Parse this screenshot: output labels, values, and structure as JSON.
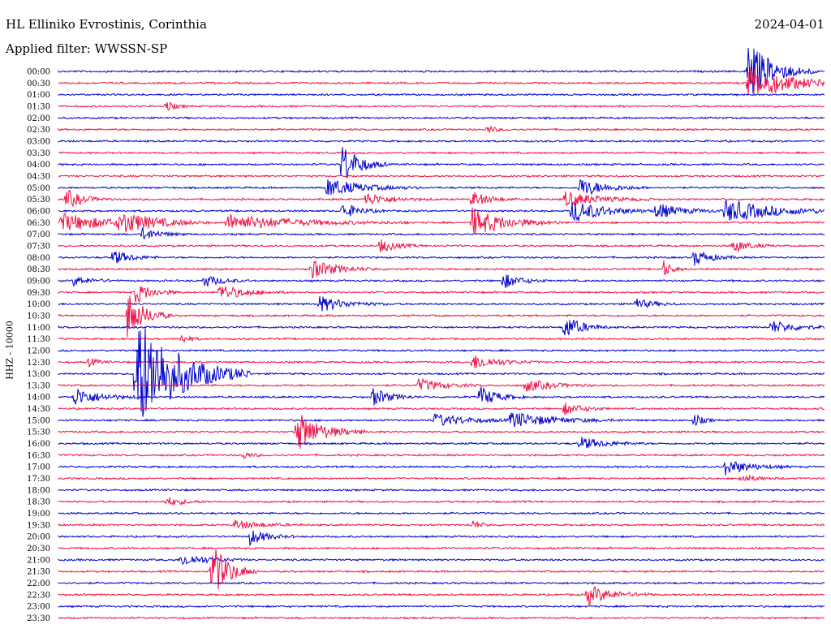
{
  "header": {
    "station": "HL Elliniko Evrostinis, Corinthia",
    "date": "2024-04-01",
    "filter": "Applied filter: WWSSN-SP"
  },
  "chart_data": {
    "type": "line",
    "ylabel": "HHZ - 10000",
    "colors": [
      "#0000cc",
      "#ee1144"
    ],
    "rows": [
      "00:00",
      "00:30",
      "01:00",
      "01:30",
      "02:00",
      "02:30",
      "03:00",
      "03:30",
      "04:00",
      "04:30",
      "05:00",
      "05:30",
      "06:00",
      "06:30",
      "07:00",
      "07:30",
      "08:00",
      "08:30",
      "09:00",
      "09:30",
      "10:00",
      "10:30",
      "11:00",
      "11:30",
      "12:00",
      "12:30",
      "13:00",
      "13:30",
      "14:00",
      "14:30",
      "15:00",
      "15:30",
      "16:00",
      "16:30",
      "17:00",
      "17:30",
      "18:00",
      "18:30",
      "19:00",
      "19:30",
      "20:00",
      "20:30",
      "21:00",
      "21:30",
      "22:00",
      "22:30",
      "23:00",
      "23:30"
    ],
    "events": [
      {
        "row": 0,
        "x": 0.9,
        "amp": 38,
        "dur": 0.03
      },
      {
        "row": 1,
        "x": 0.9,
        "amp": 22,
        "dur": 0.05
      },
      {
        "row": 3,
        "x": 0.14,
        "amp": 7,
        "dur": 0.01
      },
      {
        "row": 5,
        "x": 0.56,
        "amp": 5,
        "dur": 0.01
      },
      {
        "row": 8,
        "x": 0.37,
        "amp": 28,
        "dur": 0.02
      },
      {
        "row": 10,
        "x": 0.35,
        "amp": 12,
        "dur": 0.04
      },
      {
        "row": 10,
        "x": 0.68,
        "amp": 12,
        "dur": 0.03
      },
      {
        "row": 11,
        "x": 0.01,
        "amp": 12,
        "dur": 0.02
      },
      {
        "row": 11,
        "x": 0.4,
        "amp": 8,
        "dur": 0.03
      },
      {
        "row": 11,
        "x": 0.54,
        "amp": 10,
        "dur": 0.02
      },
      {
        "row": 11,
        "x": 0.66,
        "amp": 10,
        "dur": 0.04
      },
      {
        "row": 12,
        "x": 0.37,
        "amp": 10,
        "dur": 0.02
      },
      {
        "row": 12,
        "x": 0.67,
        "amp": 14,
        "dur": 0.04
      },
      {
        "row": 12,
        "x": 0.78,
        "amp": 10,
        "dur": 0.03
      },
      {
        "row": 12,
        "x": 0.87,
        "amp": 14,
        "dur": 0.06
      },
      {
        "row": 13,
        "x": 0.0,
        "amp": 12,
        "dur": 0.06
      },
      {
        "row": 13,
        "x": 0.08,
        "amp": 12,
        "dur": 0.04
      },
      {
        "row": 13,
        "x": 0.22,
        "amp": 10,
        "dur": 0.08
      },
      {
        "row": 13,
        "x": 0.54,
        "amp": 18,
        "dur": 0.04
      },
      {
        "row": 14,
        "x": 0.11,
        "amp": 8,
        "dur": 0.02
      },
      {
        "row": 15,
        "x": 0.42,
        "amp": 8,
        "dur": 0.02
      },
      {
        "row": 15,
        "x": 0.88,
        "amp": 8,
        "dur": 0.02
      },
      {
        "row": 16,
        "x": 0.07,
        "amp": 10,
        "dur": 0.02
      },
      {
        "row": 16,
        "x": 0.83,
        "amp": 10,
        "dur": 0.02
      },
      {
        "row": 17,
        "x": 0.33,
        "amp": 12,
        "dur": 0.03
      },
      {
        "row": 17,
        "x": 0.79,
        "amp": 10,
        "dur": 0.01
      },
      {
        "row": 18,
        "x": 0.02,
        "amp": 6,
        "dur": 0.02
      },
      {
        "row": 18,
        "x": 0.19,
        "amp": 8,
        "dur": 0.02
      },
      {
        "row": 18,
        "x": 0.58,
        "amp": 10,
        "dur": 0.02
      },
      {
        "row": 19,
        "x": 0.1,
        "amp": 14,
        "dur": 0.02
      },
      {
        "row": 19,
        "x": 0.21,
        "amp": 10,
        "dur": 0.03
      },
      {
        "row": 20,
        "x": 0.34,
        "amp": 10,
        "dur": 0.03
      },
      {
        "row": 20,
        "x": 0.75,
        "amp": 8,
        "dur": 0.02
      },
      {
        "row": 21,
        "x": 0.09,
        "amp": 30,
        "dur": 0.02
      },
      {
        "row": 22,
        "x": 0.66,
        "amp": 16,
        "dur": 0.02
      },
      {
        "row": 22,
        "x": 0.93,
        "amp": 8,
        "dur": 0.03
      },
      {
        "row": 23,
        "x": 0.16,
        "amp": 6,
        "dur": 0.01
      },
      {
        "row": 25,
        "x": 0.04,
        "amp": 6,
        "dur": 0.01
      },
      {
        "row": 25,
        "x": 0.54,
        "amp": 10,
        "dur": 0.03
      },
      {
        "row": 26,
        "x": 0.1,
        "amp": 80,
        "dur": 0.05
      },
      {
        "row": 27,
        "x": 0.47,
        "amp": 8,
        "dur": 0.03
      },
      {
        "row": 27,
        "x": 0.61,
        "amp": 8,
        "dur": 0.03
      },
      {
        "row": 28,
        "x": 0.02,
        "amp": 12,
        "dur": 0.03
      },
      {
        "row": 28,
        "x": 0.41,
        "amp": 12,
        "dur": 0.02
      },
      {
        "row": 28,
        "x": 0.55,
        "amp": 14,
        "dur": 0.02
      },
      {
        "row": 29,
        "x": 0.66,
        "amp": 8,
        "dur": 0.02
      },
      {
        "row": 30,
        "x": 0.49,
        "amp": 8,
        "dur": 0.04
      },
      {
        "row": 30,
        "x": 0.59,
        "amp": 10,
        "dur": 0.05
      },
      {
        "row": 30,
        "x": 0.83,
        "amp": 8,
        "dur": 0.01
      },
      {
        "row": 31,
        "x": 0.31,
        "amp": 26,
        "dur": 0.03
      },
      {
        "row": 32,
        "x": 0.68,
        "amp": 8,
        "dur": 0.03
      },
      {
        "row": 33,
        "x": 0.24,
        "amp": 5,
        "dur": 0.01
      },
      {
        "row": 34,
        "x": 0.87,
        "amp": 10,
        "dur": 0.03
      },
      {
        "row": 35,
        "x": 0.89,
        "amp": 5,
        "dur": 0.02
      },
      {
        "row": 37,
        "x": 0.14,
        "amp": 6,
        "dur": 0.02
      },
      {
        "row": 39,
        "x": 0.23,
        "amp": 6,
        "dur": 0.03
      },
      {
        "row": 39,
        "x": 0.54,
        "amp": 6,
        "dur": 0.01
      },
      {
        "row": 40,
        "x": 0.25,
        "amp": 10,
        "dur": 0.02
      },
      {
        "row": 42,
        "x": 0.16,
        "amp": 8,
        "dur": 0.03
      },
      {
        "row": 43,
        "x": 0.2,
        "amp": 36,
        "dur": 0.02
      },
      {
        "row": 45,
        "x": 0.69,
        "amp": 12,
        "dur": 0.03
      }
    ]
  }
}
